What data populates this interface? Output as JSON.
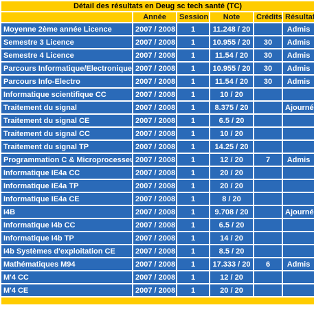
{
  "table": {
    "caption": "Détail des résultats en Deug sc tech santé (TC)",
    "headers": [
      "",
      "Année",
      "Session",
      "Note",
      "Crédits",
      "Résultat"
    ],
    "rows": [
      {
        "label": "Moyenne 2ème année Licence",
        "annee": "2007 / 2008",
        "session": "1",
        "note": "11.248 / 20",
        "credits": "",
        "resultat": "Admis"
      },
      {
        "label": "Semestre 3 Licence",
        "annee": "2007 / 2008",
        "session": "1",
        "note": "10.955 / 20",
        "credits": "30",
        "resultat": "Admis"
      },
      {
        "label": "Semestre 4 Licence",
        "annee": "2007 / 2008",
        "session": "1",
        "note": "11.54 / 20",
        "credits": "30",
        "resultat": "Admis"
      },
      {
        "label": "Parcours Informatique/Electronique",
        "annee": "2007 / 2008",
        "session": "1",
        "note": "10.955 / 20",
        "credits": "30",
        "resultat": "Admis"
      },
      {
        "label": "Parcours Info-Electro",
        "annee": "2007 / 2008",
        "session": "1",
        "note": "11.54 / 20",
        "credits": "30",
        "resultat": "Admis"
      },
      {
        "label": "Informatique scientifique CC",
        "annee": "2007 / 2008",
        "session": "1",
        "note": "10 / 20",
        "credits": "",
        "resultat": ""
      },
      {
        "label": "Traitement du signal",
        "annee": "2007 / 2008",
        "session": "1",
        "note": "8.375 / 20",
        "credits": "",
        "resultat": "Ajourné"
      },
      {
        "label": "Traitement du signal CE",
        "annee": "2007 / 2008",
        "session": "1",
        "note": "6.5 / 20",
        "credits": "",
        "resultat": ""
      },
      {
        "label": "Traitement du signal CC",
        "annee": "2007 / 2008",
        "session": "1",
        "note": "10 / 20",
        "credits": "",
        "resultat": ""
      },
      {
        "label": "Traitement du signal TP",
        "annee": "2007 / 2008",
        "session": "1",
        "note": "14.25 / 20",
        "credits": "",
        "resultat": ""
      },
      {
        "label": "Programmation C & Microprocesseurs",
        "annee": "2007 / 2008",
        "session": "1",
        "note": "12 / 20",
        "credits": "7",
        "resultat": "Admis"
      },
      {
        "label": "Informatique IE4a CC",
        "annee": "2007 / 2008",
        "session": "1",
        "note": "20 / 20",
        "credits": "",
        "resultat": ""
      },
      {
        "label": "Informatique IE4a TP",
        "annee": "2007 / 2008",
        "session": "1",
        "note": "20 / 20",
        "credits": "",
        "resultat": ""
      },
      {
        "label": "Informatique IE4a CE",
        "annee": "2007 / 2008",
        "session": "1",
        "note": "8 / 20",
        "credits": "",
        "resultat": ""
      },
      {
        "label": "I4B",
        "annee": "2007 / 2008",
        "session": "1",
        "note": "9.708 / 20",
        "credits": "",
        "resultat": "Ajourné"
      },
      {
        "label": "Informatique I4b CC",
        "annee": "2007 / 2008",
        "session": "1",
        "note": "6.5 / 20",
        "credits": "",
        "resultat": ""
      },
      {
        "label": "Informatique I4b TP",
        "annee": "2007 / 2008",
        "session": "1",
        "note": "14 / 20",
        "credits": "",
        "resultat": ""
      },
      {
        "label": "I4b Systèmes d'exploitation CE",
        "annee": "2007 / 2008",
        "session": "1",
        "note": "8.5 / 20",
        "credits": "",
        "resultat": ""
      },
      {
        "label": "Mathématiques M94",
        "annee": "2007 / 2008",
        "session": "1",
        "note": "17.333 / 20",
        "credits": "6",
        "resultat": "Admis"
      },
      {
        "label": "M'4 CC",
        "annee": "2007 / 2008",
        "session": "1",
        "note": "12 / 20",
        "credits": "",
        "resultat": ""
      },
      {
        "label": "M'4 CE",
        "annee": "2007 / 2008",
        "session": "1",
        "note": "20 / 20",
        "credits": "",
        "resultat": ""
      }
    ]
  },
  "colors": {
    "header_bg": "#ffcc00",
    "row_bg": "#2a6ab8",
    "row_text": "#ffffff"
  }
}
